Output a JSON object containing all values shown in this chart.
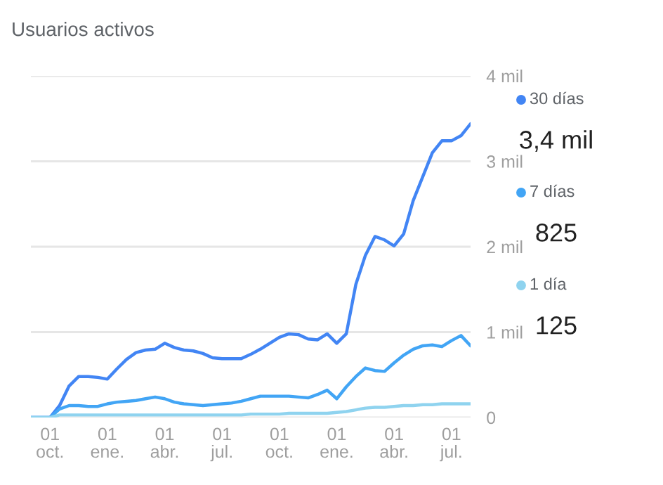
{
  "chart_data": {
    "type": "line",
    "title": "Usuarios activos",
    "categories": [
      null,
      null,
      "01\noct.",
      null,
      null,
      null,
      null,
      null,
      "01\nene.",
      null,
      null,
      null,
      null,
      null,
      "01\nabr.",
      null,
      null,
      null,
      null,
      null,
      "01\njul.",
      null,
      null,
      null,
      null,
      null,
      "01\noct.",
      null,
      null,
      null,
      null,
      null,
      "01\nene.",
      null,
      null,
      null,
      null,
      null,
      "01\nabr.",
      null,
      null,
      null,
      null,
      null,
      "01\njul.",
      null,
      null
    ],
    "ylim": [
      0,
      4
    ],
    "yticks": [
      {
        "value": 0,
        "label": "0"
      },
      {
        "value": 1,
        "label": "1 mil"
      },
      {
        "value": 2,
        "label": "2 mil"
      },
      {
        "value": 3,
        "label": "3 mil"
      },
      {
        "value": 4,
        "label": "4 mil"
      }
    ],
    "grid": "y",
    "legend": "right",
    "series": [
      {
        "name": "30 días",
        "color": "#4285f4",
        "values": [
          0,
          0,
          0,
          0.14,
          0.37,
          0.48,
          0.48,
          0.47,
          0.45,
          0.57,
          0.68,
          0.76,
          0.79,
          0.8,
          0.87,
          0.82,
          0.79,
          0.78,
          0.75,
          0.7,
          0.69,
          0.69,
          0.69,
          0.74,
          0.8,
          0.87,
          0.94,
          0.98,
          0.97,
          0.92,
          0.91,
          0.98,
          0.87,
          0.98,
          1.56,
          1.9,
          2.12,
          2.08,
          2.01,
          2.15,
          2.54,
          2.82,
          3.1,
          3.24,
          3.24,
          3.3,
          3.44
        ]
      },
      {
        "name": "7 días",
        "color": "#42a5f5",
        "values": [
          0,
          0,
          0,
          0.1,
          0.14,
          0.14,
          0.13,
          0.13,
          0.16,
          0.18,
          0.19,
          0.2,
          0.22,
          0.24,
          0.22,
          0.18,
          0.16,
          0.15,
          0.14,
          0.15,
          0.16,
          0.17,
          0.19,
          0.22,
          0.25,
          0.25,
          0.25,
          0.25,
          0.24,
          0.23,
          0.27,
          0.32,
          0.22,
          0.36,
          0.48,
          0.58,
          0.55,
          0.54,
          0.64,
          0.73,
          0.8,
          0.84,
          0.85,
          0.83,
          0.9,
          0.96,
          0.84
        ]
      },
      {
        "name": "1 día",
        "color": "#8fd3ef",
        "values": [
          0,
          0,
          0,
          0.03,
          0.03,
          0.03,
          0.03,
          0.03,
          0.03,
          0.03,
          0.03,
          0.03,
          0.03,
          0.03,
          0.03,
          0.03,
          0.03,
          0.03,
          0.03,
          0.03,
          0.03,
          0.03,
          0.03,
          0.04,
          0.04,
          0.04,
          0.04,
          0.05,
          0.05,
          0.05,
          0.05,
          0.05,
          0.06,
          0.07,
          0.09,
          0.11,
          0.12,
          0.12,
          0.13,
          0.14,
          0.14,
          0.15,
          0.15,
          0.16,
          0.16,
          0.16,
          0.16
        ]
      }
    ],
    "annotations": [
      "3,4 mil",
      "825",
      "125"
    ]
  }
}
